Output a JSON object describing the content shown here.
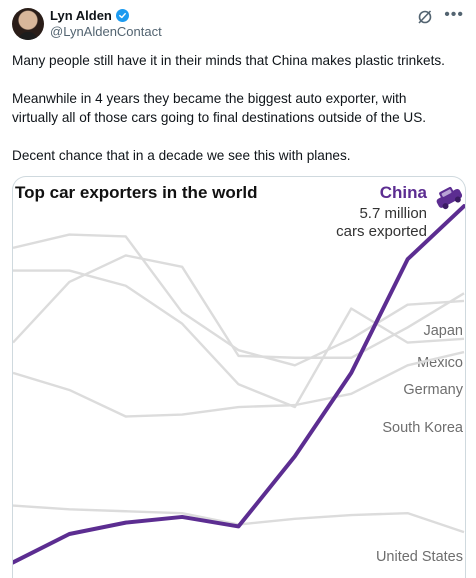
{
  "author": {
    "name": "Lyn Alden",
    "handle": "@LynAldenContact",
    "verified_color": "#1d9bf0"
  },
  "icons": {
    "verified": "verified-badge-icon",
    "grok": "grok-icon",
    "more": "more-icon"
  },
  "tweet": {
    "paragraphs": [
      [
        "Many people still have it in their minds that China makes plastic trinkets."
      ],
      [
        "Meanwhile in 4 years they became the biggest auto exporter, with",
        "virtually all of those cars going to final destinations outside of the US."
      ],
      [
        "Decent chance that in a decade we see this with planes."
      ]
    ]
  },
  "chart_data": {
    "type": "line",
    "title": "Top car exporters in the world",
    "highlight": {
      "name": "China",
      "color": "#5c2d91",
      "annotation": [
        "5.7 million",
        "cars exported"
      ],
      "icon": "car-icon"
    },
    "grid": false,
    "series": [
      {
        "name": "China",
        "highlight": true,
        "values": [
          0.2,
          0.95,
          1.25,
          1.4,
          1.15,
          3.0,
          5.2,
          8.2,
          9.6
        ]
      },
      {
        "name": "Japan",
        "values": [
          8.5,
          8.85,
          8.8,
          6.8,
          5.8,
          5.4,
          6.1,
          7.0,
          7.1
        ]
      },
      {
        "name": "Mexico",
        "values": [
          6.0,
          7.6,
          8.3,
          8.0,
          5.65,
          5.6,
          5.6,
          6.4,
          7.3
        ]
      },
      {
        "name": "Germany",
        "values": [
          7.9,
          7.9,
          7.5,
          6.5,
          4.9,
          4.3,
          6.9,
          6.0,
          6.1
        ]
      },
      {
        "name": "South Korea",
        "values": [
          5.2,
          4.75,
          4.05,
          4.1,
          4.3,
          4.35,
          4.65,
          5.4,
          5.75
        ]
      },
      {
        "name": "United States",
        "values": [
          1.7,
          1.6,
          1.55,
          1.5,
          1.2,
          1.35,
          1.45,
          1.5,
          1.0
        ]
      }
    ],
    "colors": {
      "highlight": "#5c2d91",
      "other": "#dcdcdc",
      "label": "#6e6e6e"
    }
  }
}
